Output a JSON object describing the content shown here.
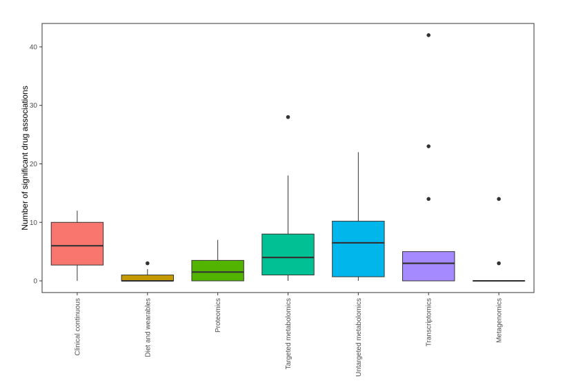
{
  "chart_data": {
    "type": "box",
    "title": "",
    "xlabel": "",
    "ylabel": "Number of significant drug associations",
    "ylim": [
      -2,
      44
    ],
    "yticks": [
      0,
      10,
      20,
      30,
      40
    ],
    "grid": false,
    "legend": "none",
    "categories": [
      "Clinical continuous",
      "Diet and wearables",
      "Proteomics",
      "Targeted metabolomics",
      "Untargeted metabolomics",
      "Transcriptomics",
      "Metagenomics"
    ],
    "boxes": [
      {
        "min": 0,
        "q1": 2.7,
        "median": 6,
        "q3": 10,
        "max": 12,
        "outliers": [],
        "color": "#F8766D"
      },
      {
        "min": 0,
        "q1": 0,
        "median": 0,
        "q3": 1,
        "max": 2,
        "outliers": [
          3
        ],
        "color": "#C49A00"
      },
      {
        "min": 0,
        "q1": 0,
        "median": 1.5,
        "q3": 3.5,
        "max": 7,
        "outliers": [],
        "color": "#53B400"
      },
      {
        "min": 0,
        "q1": 1,
        "median": 4,
        "q3": 8,
        "max": 18,
        "outliers": [
          28
        ],
        "color": "#00C094"
      },
      {
        "min": 0,
        "q1": 0.7,
        "median": 6.5,
        "q3": 10.2,
        "max": 22,
        "outliers": [],
        "color": "#00B6EB"
      },
      {
        "min": 0,
        "q1": 0,
        "median": 3,
        "q3": 5,
        "max": 5,
        "outliers": [
          14,
          23,
          42
        ],
        "color": "#A58AFF"
      },
      {
        "min": 0,
        "q1": 0,
        "median": 0,
        "q3": 0,
        "max": 0,
        "outliers": [
          3,
          14
        ],
        "color": "#FB61D7"
      }
    ]
  }
}
